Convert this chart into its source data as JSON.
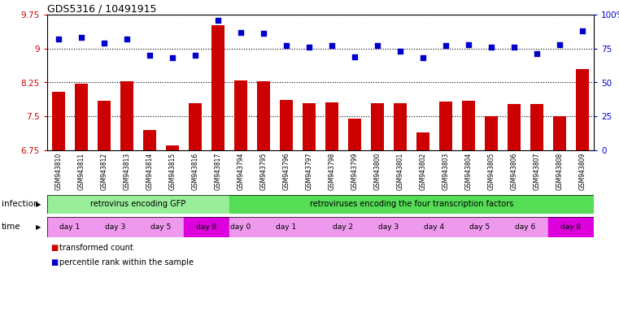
{
  "title": "GDS5316 / 10491915",
  "samples": [
    "GSM943810",
    "GSM943811",
    "GSM943812",
    "GSM943813",
    "GSM943814",
    "GSM943815",
    "GSM943816",
    "GSM943817",
    "GSM943794",
    "GSM943795",
    "GSM943796",
    "GSM943797",
    "GSM943798",
    "GSM943799",
    "GSM943800",
    "GSM943801",
    "GSM943802",
    "GSM943803",
    "GSM943804",
    "GSM943805",
    "GSM943806",
    "GSM943807",
    "GSM943808",
    "GSM943809"
  ],
  "bar_values": [
    8.05,
    8.22,
    7.84,
    8.27,
    7.2,
    6.85,
    7.8,
    9.52,
    8.3,
    8.27,
    7.87,
    7.8,
    7.81,
    7.45,
    7.8,
    7.8,
    7.15,
    7.83,
    7.84,
    7.5,
    7.78,
    7.78,
    7.5,
    8.55
  ],
  "dot_values": [
    82,
    83,
    79,
    82,
    70,
    68,
    70,
    96,
    87,
    86,
    77,
    76,
    77,
    69,
    77,
    73,
    68,
    77,
    78,
    76,
    76,
    71,
    78,
    88
  ],
  "ylim": [
    6.75,
    9.75
  ],
  "yticks": [
    6.75,
    7.5,
    8.25,
    9.0,
    9.75
  ],
  "ytick_labels": [
    "6.75",
    "7.5",
    "8.25",
    "9",
    "9.75"
  ],
  "y2lim": [
    0,
    100
  ],
  "y2ticks": [
    0,
    25,
    50,
    75,
    100
  ],
  "y2tick_labels": [
    "0",
    "25",
    "50",
    "75",
    "100%"
  ],
  "bar_color": "#cc0000",
  "dot_color": "#0000cc",
  "plot_bg": "#ffffff",
  "infection_groups": [
    {
      "label": "retrovirus encoding GFP",
      "start": 0,
      "end": 8,
      "color": "#99ee99"
    },
    {
      "label": "retroviruses encoding the four transcription factors",
      "start": 8,
      "end": 24,
      "color": "#55dd55"
    }
  ],
  "time_groups": [
    {
      "label": "day 1",
      "start": 0,
      "end": 2,
      "color": "#ee99ee"
    },
    {
      "label": "day 3",
      "start": 2,
      "end": 4,
      "color": "#ee99ee"
    },
    {
      "label": "day 5",
      "start": 4,
      "end": 6,
      "color": "#ee99ee"
    },
    {
      "label": "day 8",
      "start": 6,
      "end": 8,
      "color": "#dd00dd"
    },
    {
      "label": "day 0",
      "start": 8,
      "end": 9,
      "color": "#ee99ee"
    },
    {
      "label": "day 1",
      "start": 9,
      "end": 12,
      "color": "#ee99ee"
    },
    {
      "label": "day 2",
      "start": 12,
      "end": 14,
      "color": "#ee99ee"
    },
    {
      "label": "day 3",
      "start": 14,
      "end": 16,
      "color": "#ee99ee"
    },
    {
      "label": "day 4",
      "start": 16,
      "end": 18,
      "color": "#ee99ee"
    },
    {
      "label": "day 5",
      "start": 18,
      "end": 20,
      "color": "#ee99ee"
    },
    {
      "label": "day 6",
      "start": 20,
      "end": 22,
      "color": "#ee99ee"
    },
    {
      "label": "day 8",
      "start": 22,
      "end": 24,
      "color": "#dd00dd"
    }
  ],
  "legend_items": [
    {
      "label": "transformed count",
      "color": "#cc0000"
    },
    {
      "label": "percentile rank within the sample",
      "color": "#0000cc"
    }
  ],
  "bg_color": "#ffffff",
  "tick_label_color_left": "#cc0000",
  "tick_label_color_right": "#0000cc"
}
